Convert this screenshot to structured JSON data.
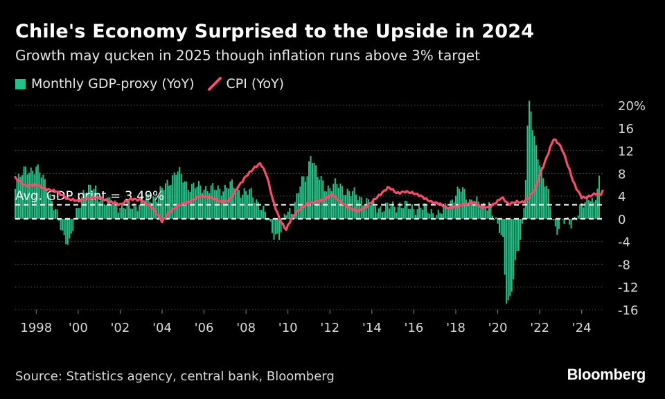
{
  "title": "Chile's Economy Surprised to the Upside in 2024",
  "subtitle": "Growth may qucken in 2025 though inflation runs above 3% target",
  "legend": {
    "gdp_label": "Monthly GDP-proxy (YoY)",
    "cpi_label": "CPI (YoY)"
  },
  "source": "Source: Statistics agency, central bank, Bloomberg",
  "brand": "Bloomberg",
  "colors": {
    "gdp_bar": "#1fc48a",
    "cpi_line": "#ff4a6b",
    "grid": "#555555",
    "axis_text": "#d9d9d9"
  },
  "chart_data": {
    "type": "bar",
    "title": "Chile's Economy Surprised to the Upside in 2024",
    "ylim": [
      -16,
      20
    ],
    "xlim": [
      1997.0,
      2025.0
    ],
    "yticks": [
      -16,
      -12,
      -8,
      -4,
      0,
      4,
      8,
      12,
      16,
      20
    ],
    "ytick_labels": [
      "-16",
      "-12",
      "-8",
      "-4",
      "0",
      "4",
      "8",
      "12",
      "16",
      "20%"
    ],
    "xticks": [
      1998,
      2000,
      2002,
      2004,
      2006,
      2008,
      2010,
      2012,
      2014,
      2016,
      2018,
      2020,
      2022,
      2024
    ],
    "xtick_labels": [
      "1998",
      "'00",
      "'02",
      "'04",
      "'06",
      "'08",
      "'10",
      "'12",
      "'14",
      "'16",
      "'18",
      "'20",
      "'22",
      "'24"
    ],
    "reference_line": {
      "y": 3.49,
      "label": "Avg. GDP print = 3.49%"
    },
    "series": [
      {
        "name": "Monthly GDP-proxy (YoY)",
        "kind": "bar",
        "anchors": [
          [
            1997.0,
            6.5
          ],
          [
            1997.5,
            8.5
          ],
          [
            1998.0,
            9.0
          ],
          [
            1998.5,
            6.0
          ],
          [
            1998.9,
            1.5
          ],
          [
            1999.3,
            -3.0
          ],
          [
            1999.6,
            -4.0
          ],
          [
            1999.9,
            0.5
          ],
          [
            2000.3,
            5.5
          ],
          [
            2000.8,
            5.0
          ],
          [
            2001.3,
            3.0
          ],
          [
            2001.8,
            2.5
          ],
          [
            2002.3,
            2.0
          ],
          [
            2002.8,
            2.5
          ],
          [
            2003.3,
            3.5
          ],
          [
            2003.8,
            4.0
          ],
          [
            2004.3,
            6.5
          ],
          [
            2004.7,
            8.5
          ],
          [
            2005.2,
            6.0
          ],
          [
            2005.7,
            5.5
          ],
          [
            2006.2,
            5.5
          ],
          [
            2006.7,
            5.0
          ],
          [
            2007.2,
            6.0
          ],
          [
            2007.7,
            5.0
          ],
          [
            2008.2,
            4.5
          ],
          [
            2008.7,
            2.5
          ],
          [
            2009.0,
            0.0
          ],
          [
            2009.3,
            -2.5
          ],
          [
            2009.6,
            -3.0
          ],
          [
            2009.9,
            1.0
          ],
          [
            2010.2,
            1.5
          ],
          [
            2010.6,
            6.0
          ],
          [
            2010.9,
            7.5
          ],
          [
            2011.1,
            12.0
          ],
          [
            2011.4,
            7.5
          ],
          [
            2011.8,
            5.5
          ],
          [
            2012.3,
            6.0
          ],
          [
            2012.8,
            5.0
          ],
          [
            2013.3,
            4.0
          ],
          [
            2013.8,
            3.0
          ],
          [
            2014.3,
            2.0
          ],
          [
            2014.8,
            2.0
          ],
          [
            2015.3,
            2.5
          ],
          [
            2015.8,
            2.0
          ],
          [
            2016.3,
            2.0
          ],
          [
            2016.8,
            1.5
          ],
          [
            2017.2,
            0.5
          ],
          [
            2017.6,
            2.5
          ],
          [
            2018.0,
            4.0
          ],
          [
            2018.3,
            5.5
          ],
          [
            2018.7,
            3.0
          ],
          [
            2019.2,
            2.5
          ],
          [
            2019.6,
            2.5
          ],
          [
            2019.85,
            -0.5
          ],
          [
            2020.1,
            -1.5
          ],
          [
            2020.25,
            -3.5
          ],
          [
            2020.4,
            -14.0
          ],
          [
            2020.55,
            -15.5
          ],
          [
            2020.7,
            -12.0
          ],
          [
            2020.9,
            -6.0
          ],
          [
            2021.15,
            -2.0
          ],
          [
            2021.3,
            4.0
          ],
          [
            2021.45,
            19.0
          ],
          [
            2021.55,
            20.2
          ],
          [
            2021.7,
            15.0
          ],
          [
            2021.9,
            12.0
          ],
          [
            2022.15,
            7.0
          ],
          [
            2022.4,
            4.5
          ],
          [
            2022.6,
            0.5
          ],
          [
            2022.8,
            -2.0
          ],
          [
            2023.0,
            -1.0
          ],
          [
            2023.2,
            -0.5
          ],
          [
            2023.5,
            -0.5
          ],
          [
            2023.8,
            0.5
          ],
          [
            2024.0,
            2.0
          ],
          [
            2024.25,
            3.5
          ],
          [
            2024.45,
            4.5
          ],
          [
            2024.6,
            2.0
          ],
          [
            2024.8,
            6.5
          ]
        ]
      },
      {
        "name": "CPI (YoY)",
        "kind": "line",
        "anchors": [
          [
            1997.0,
            7.2
          ],
          [
            1997.5,
            5.8
          ],
          [
            1998.0,
            6.0
          ],
          [
            1998.5,
            5.2
          ],
          [
            1999.0,
            4.8
          ],
          [
            1999.5,
            3.5
          ],
          [
            2000.0,
            3.2
          ],
          [
            2000.5,
            3.6
          ],
          [
            2001.0,
            3.8
          ],
          [
            2001.5,
            3.0
          ],
          [
            2002.0,
            2.5
          ],
          [
            2002.5,
            3.5
          ],
          [
            2003.0,
            3.3
          ],
          [
            2003.5,
            2.0
          ],
          [
            2003.8,
            0.7
          ],
          [
            2004.0,
            -0.5
          ],
          [
            2004.3,
            1.0
          ],
          [
            2004.8,
            2.4
          ],
          [
            2005.3,
            3.0
          ],
          [
            2005.8,
            4.0
          ],
          [
            2006.3,
            3.8
          ],
          [
            2006.8,
            3.0
          ],
          [
            2007.2,
            3.2
          ],
          [
            2007.6,
            5.5
          ],
          [
            2008.0,
            7.5
          ],
          [
            2008.4,
            9.0
          ],
          [
            2008.7,
            9.8
          ],
          [
            2009.0,
            7.5
          ],
          [
            2009.3,
            3.0
          ],
          [
            2009.6,
            0.0
          ],
          [
            2009.9,
            -2.0
          ],
          [
            2010.2,
            0.3
          ],
          [
            2010.5,
            1.5
          ],
          [
            2010.9,
            2.6
          ],
          [
            2011.3,
            3.0
          ],
          [
            2011.7,
            3.3
          ],
          [
            2012.1,
            4.3
          ],
          [
            2012.5,
            3.0
          ],
          [
            2012.9,
            2.0
          ],
          [
            2013.3,
            1.3
          ],
          [
            2013.7,
            2.0
          ],
          [
            2014.0,
            3.0
          ],
          [
            2014.4,
            4.3
          ],
          [
            2014.8,
            5.6
          ],
          [
            2015.2,
            4.5
          ],
          [
            2015.6,
            4.8
          ],
          [
            2016.0,
            4.5
          ],
          [
            2016.3,
            4.1
          ],
          [
            2016.8,
            3.0
          ],
          [
            2017.2,
            2.7
          ],
          [
            2017.6,
            1.9
          ],
          [
            2018.0,
            2.1
          ],
          [
            2018.5,
            2.6
          ],
          [
            2018.9,
            2.9
          ],
          [
            2019.2,
            2.0
          ],
          [
            2019.6,
            2.1
          ],
          [
            2019.9,
            2.8
          ],
          [
            2020.2,
            3.8
          ],
          [
            2020.5,
            2.6
          ],
          [
            2020.9,
            3.0
          ],
          [
            2021.2,
            2.9
          ],
          [
            2021.5,
            3.8
          ],
          [
            2021.8,
            5.3
          ],
          [
            2022.0,
            7.7
          ],
          [
            2022.3,
            10.5
          ],
          [
            2022.5,
            12.5
          ],
          [
            2022.65,
            14.1
          ],
          [
            2022.9,
            13.3
          ],
          [
            2023.1,
            12.0
          ],
          [
            2023.4,
            8.8
          ],
          [
            2023.6,
            6.5
          ],
          [
            2023.8,
            5.0
          ],
          [
            2024.0,
            3.8
          ],
          [
            2024.2,
            3.7
          ],
          [
            2024.5,
            4.2
          ],
          [
            2024.7,
            4.5
          ],
          [
            2024.85,
            4.1
          ],
          [
            2025.0,
            4.8
          ]
        ]
      }
    ]
  }
}
